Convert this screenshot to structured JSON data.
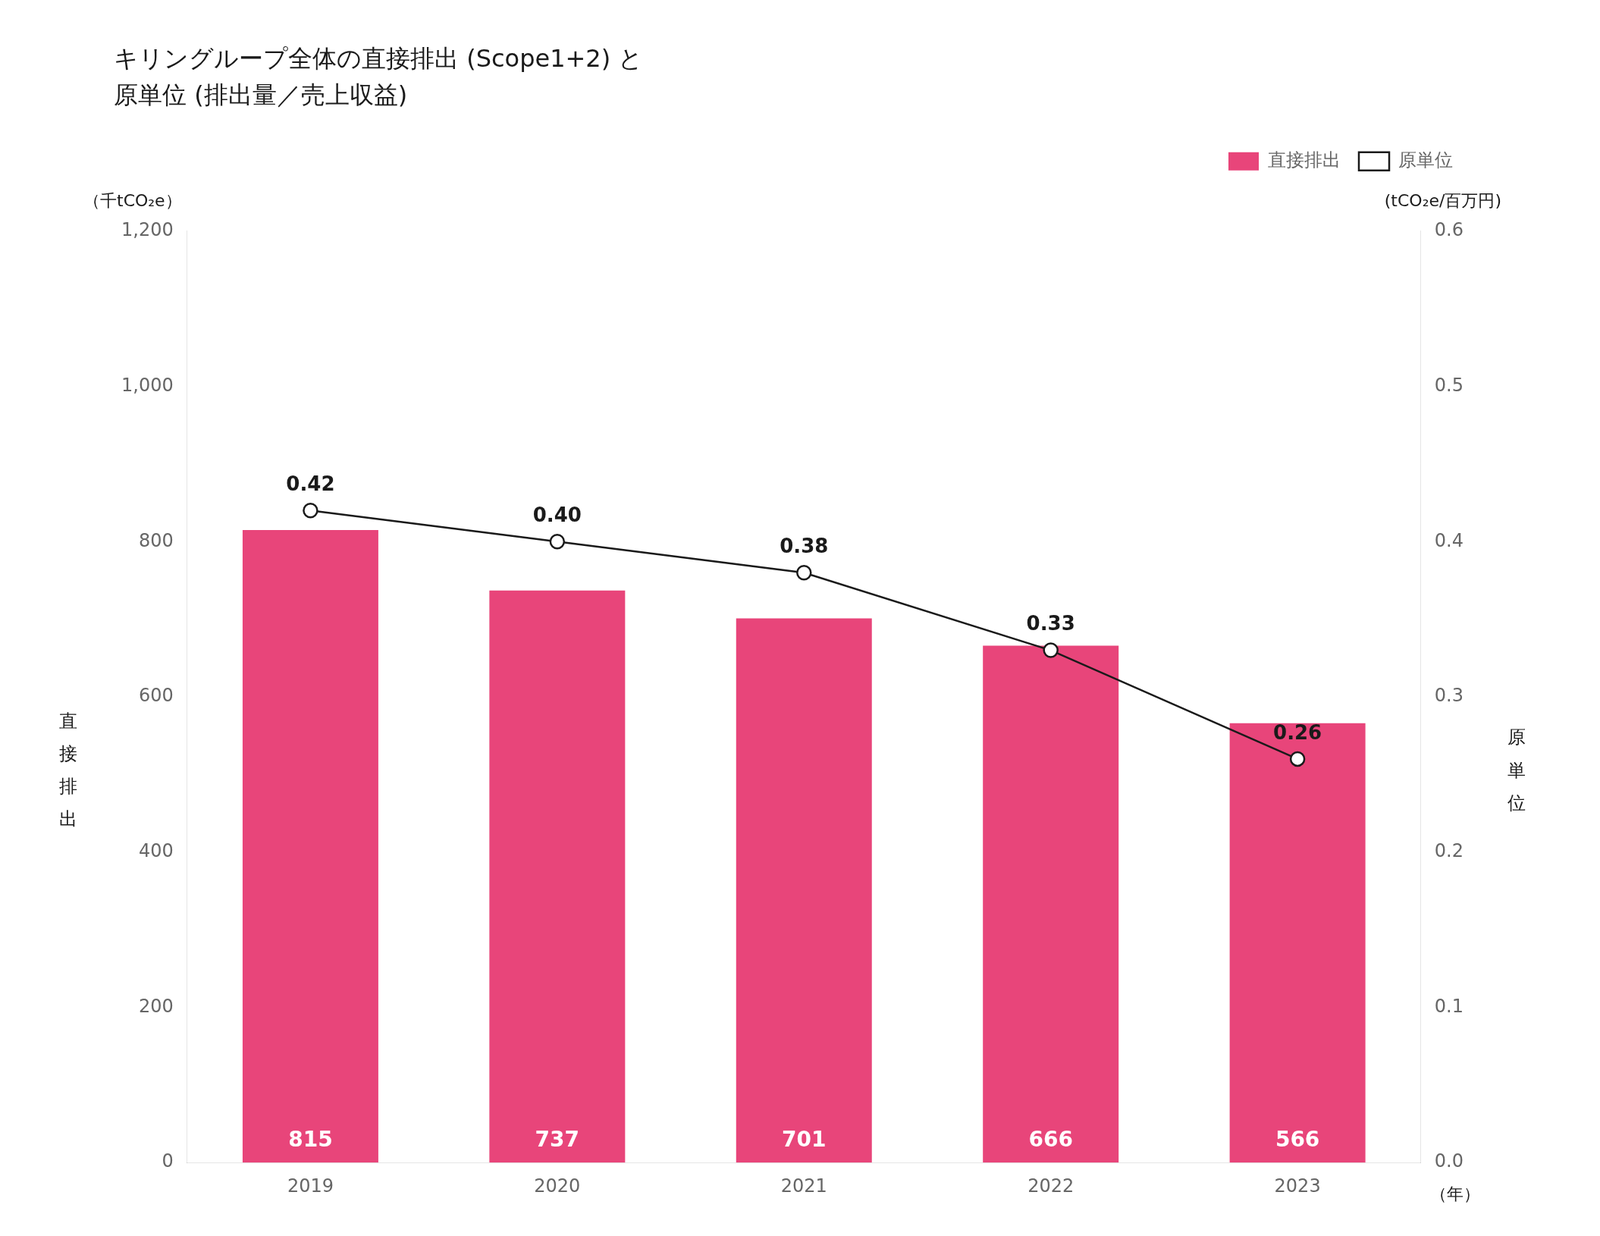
{
  "chart_data": {
    "type": "bar",
    "title": "キリングループ全体の直接排出 (Scope1+2) と",
    "subtitle": "原単位 (排出量／売上収益)",
    "categories": [
      "2019",
      "2020",
      "2021",
      "2022",
      "2023"
    ],
    "ylabel": "直\n接\n排\n出",
    "y_unit": "（千tCO₂e）",
    "y2label": "原\n単\n位",
    "y2_unit": "(tCO₂e/百万円)",
    "x_unit": "（年）",
    "series": [
      {
        "name": "直接排出",
        "type": "bar",
        "color": "#E8457A",
        "values": [
          815,
          737,
          701,
          666,
          566
        ],
        "data_labels": true
      },
      {
        "name": "原単位",
        "type": "line",
        "axis": "y2",
        "color": "#1a1a1a",
        "marker": "circle",
        "values": [
          0.42,
          0.4,
          0.38,
          0.33,
          0.26
        ],
        "value_labels": [
          "0.42",
          "0.40",
          "0.38",
          "0.33",
          "0.26"
        ],
        "data_labels": true
      }
    ],
    "ylim": [
      0,
      1200
    ],
    "yticks": [
      0,
      200,
      400,
      600,
      800,
      {
        "value": 1000,
        "label": "1,000"
      },
      {
        "value": 1200,
        "label": "1,200"
      }
    ],
    "y2lim": [
      0,
      0.6
    ],
    "y2ticks": [
      {
        "value": 0,
        "label": "0.0"
      },
      0.1,
      0.2,
      0.3,
      0.4,
      0.5,
      0.6
    ],
    "grid": false,
    "legend": "upper right"
  }
}
